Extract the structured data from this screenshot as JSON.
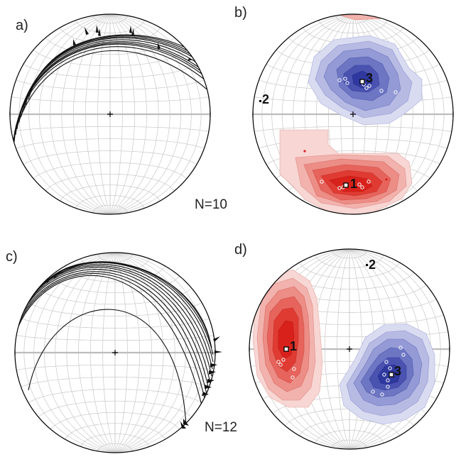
{
  "colors": {
    "grid": "#c8c8c8",
    "axis": "#bdbdbd",
    "circle": "#000000",
    "trace": "#111111",
    "compression": "#e0151b",
    "extension": "#2b36a0"
  },
  "panels": [
    {
      "id": "a",
      "label": "a)",
      "type": "fault-planes",
      "count_label": "N=10"
    },
    {
      "id": "b",
      "label": "b)",
      "type": "kinematic-axes",
      "axes": [
        {
          "label": "1",
          "kind": "compression"
        },
        {
          "label": "2",
          "kind": "intermediate"
        },
        {
          "label": "3",
          "kind": "extension"
        }
      ]
    },
    {
      "id": "c",
      "label": "c)",
      "type": "fault-planes",
      "count_label": "N=12"
    },
    {
      "id": "d",
      "label": "d)",
      "type": "kinematic-axes",
      "axes": [
        {
          "label": "1",
          "kind": "compression"
        },
        {
          "label": "2",
          "kind": "intermediate"
        },
        {
          "label": "3",
          "kind": "extension"
        }
      ]
    }
  ]
}
